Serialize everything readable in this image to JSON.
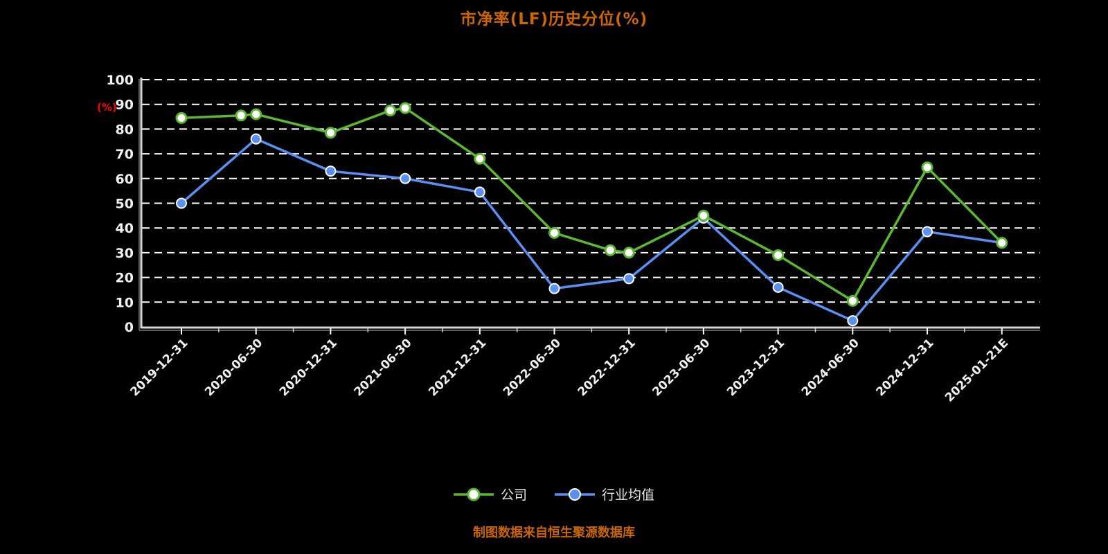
{
  "page": {
    "background": "#000000",
    "title": "市净率(LF)历史分位(%)",
    "title_color": "#cc6600",
    "footer_note": "制图数据来自恒生聚源数据库",
    "footer_color": "#cc6600"
  },
  "chart_data": {
    "type": "line",
    "title": "市净率(LF)历史分位(%)",
    "ylabel": "(%)",
    "y_unit_color": "#ff0000",
    "ylim": [
      0,
      100
    ],
    "yticks": [
      0,
      10,
      20,
      30,
      40,
      50,
      60,
      70,
      80,
      90,
      100
    ],
    "grid": "horizontal-dashed",
    "grid_color": "#ffffff",
    "axis_color": "#d6d6d6",
    "axis_shadow_color": "#5a5a5a",
    "tick_text_color": "#f2f2f2",
    "legend_position": "bottom",
    "categories": [
      "2019-12-31",
      "2020-06-30",
      "2020-12-31",
      "2021-06-30",
      "2021-12-31",
      "2022-06-30",
      "2022-12-31",
      "2023-06-30",
      "2023-12-31",
      "2024-06-30",
      "2024-12-31",
      "2025-01-21E"
    ],
    "series": [
      {
        "key": "industry-average",
        "name": "行业均值",
        "color": "#5b8ff2",
        "marker": "solid",
        "points": [
          [
            0,
            50
          ],
          [
            1,
            76
          ],
          [
            2,
            63
          ],
          [
            3,
            60
          ],
          [
            4,
            54.5
          ],
          [
            5,
            15.5
          ],
          [
            6,
            19.5
          ],
          [
            7,
            44
          ],
          [
            8,
            16
          ],
          [
            9,
            2.5
          ],
          [
            10,
            38.5
          ],
          [
            11,
            34
          ]
        ]
      },
      {
        "key": "company",
        "name": "公司",
        "color": "#5cb832",
        "marker": "hollow",
        "points": [
          [
            0,
            84.5
          ],
          [
            0.8,
            85.5
          ],
          [
            1,
            86
          ],
          [
            2,
            78.5
          ],
          [
            2.8,
            87.5
          ],
          [
            3,
            88.5
          ],
          [
            4,
            68
          ],
          [
            5,
            38
          ],
          [
            5.75,
            31
          ],
          [
            6,
            30
          ],
          [
            7,
            45
          ],
          [
            8,
            29
          ],
          [
            9,
            10.5
          ],
          [
            10,
            64.5
          ],
          [
            11,
            34
          ]
        ]
      }
    ]
  }
}
